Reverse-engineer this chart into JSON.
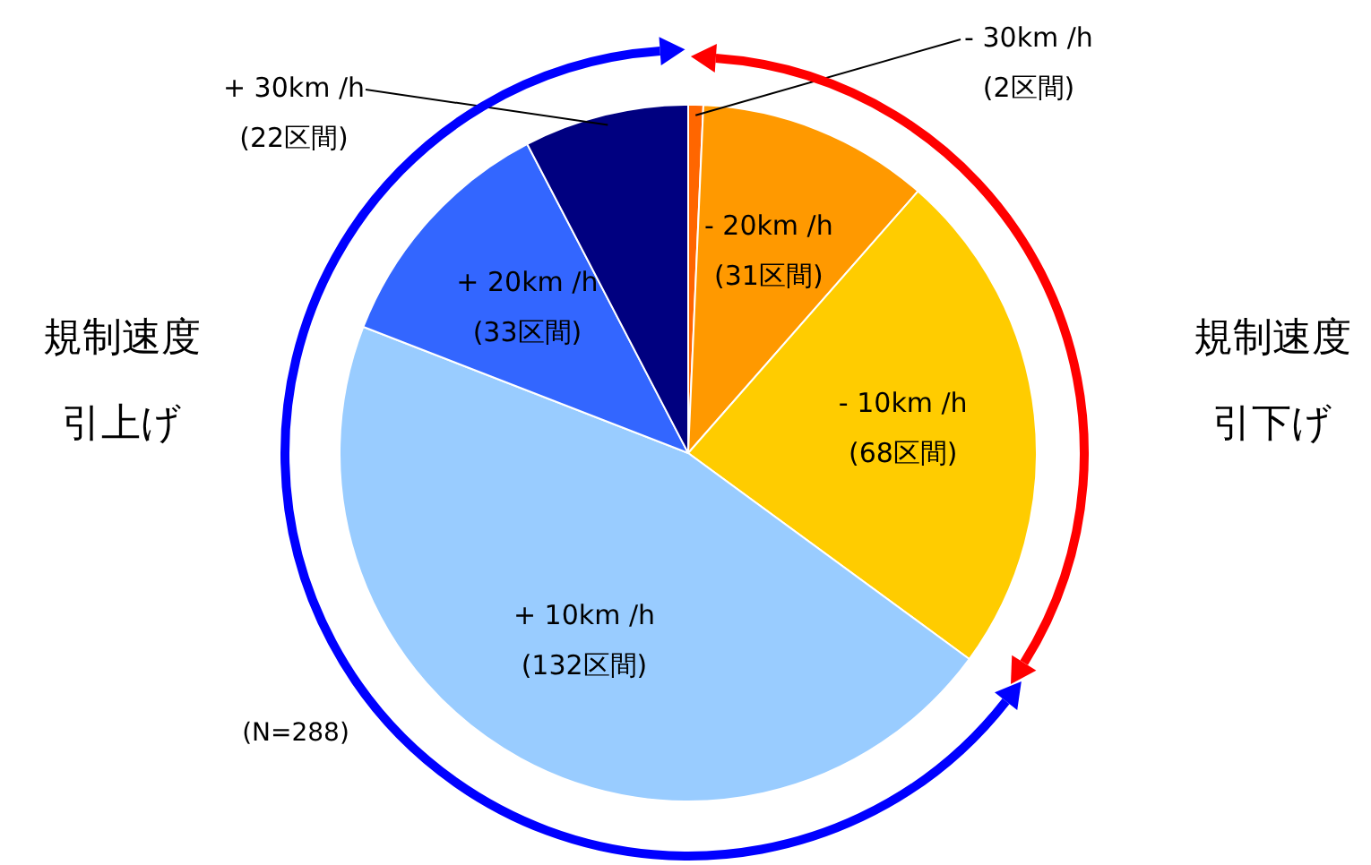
{
  "chart_data": {
    "type": "pie",
    "categories": [
      "- 30km /h",
      "- 20km /h",
      "- 10km /h",
      "+ 10km /h",
      "+ 20km /h",
      "+ 30km /h"
    ],
    "values": [
      2,
      31,
      68,
      132,
      33,
      22
    ],
    "value_labels": [
      "(2区間)",
      "(31区間)",
      "(68区間)",
      "(132区間)",
      "(33区間)",
      "(22区間)"
    ],
    "colors": [
      "#ff6600",
      "#ff9900",
      "#ffcc00",
      "#99ccff",
      "#3366ff",
      "#000080"
    ],
    "annotations": [
      "規制速度",
      "引上げ",
      "規制速度",
      "引下げ",
      "(N=288)"
    ],
    "legend": false
  }
}
